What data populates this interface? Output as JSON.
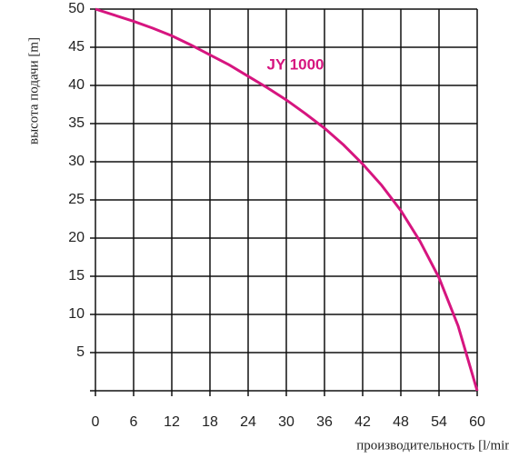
{
  "chart_data": {
    "type": "line",
    "x_label": "производительность [l/min]",
    "y_label": "высота подачи [m]",
    "annotation": "JY 1000",
    "x": [
      0,
      3,
      6,
      9,
      12,
      15,
      18,
      21,
      24,
      27,
      30,
      33,
      36,
      39,
      42,
      45,
      48,
      51,
      54,
      57,
      60
    ],
    "series": [
      {
        "name": "JY 1000",
        "color": "#d6157f",
        "values": [
          50,
          49.2,
          48.4,
          47.5,
          46.5,
          45.3,
          44,
          42.7,
          41.2,
          39.7,
          38.1,
          36.3,
          34.4,
          32.2,
          29.7,
          26.9,
          23.6,
          19.6,
          14.8,
          8.5,
          0
        ]
      }
    ],
    "xlim": [
      0,
      60
    ],
    "xticks": [
      0,
      6,
      12,
      18,
      24,
      30,
      36,
      42,
      48,
      54,
      60
    ],
    "ylim": [
      0,
      50
    ],
    "yticks": [
      5,
      10,
      15,
      20,
      25,
      30,
      35,
      40,
      45,
      50
    ],
    "grid": true
  }
}
